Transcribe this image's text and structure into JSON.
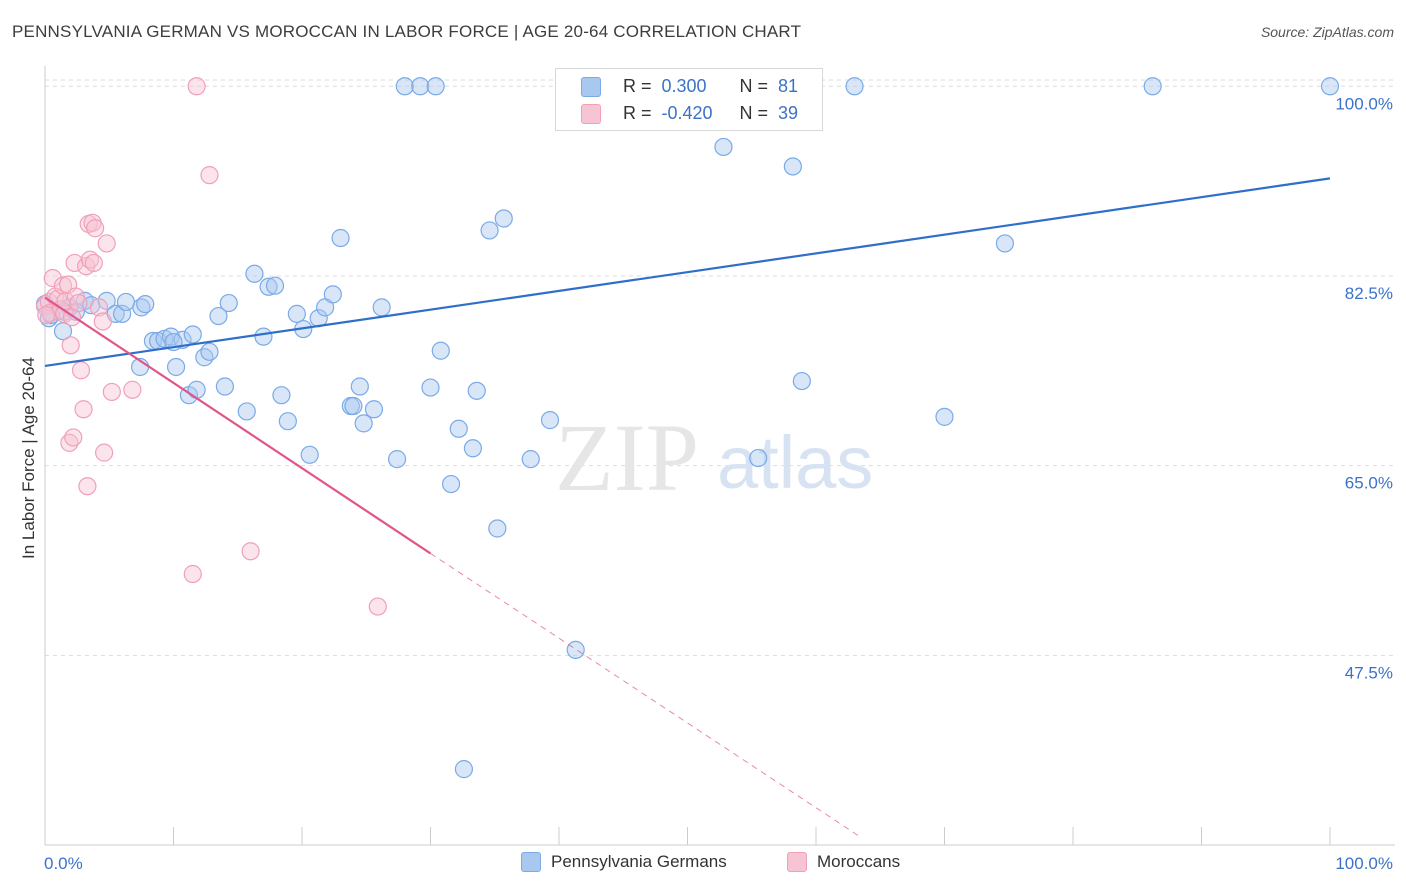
{
  "title": "PENNSYLVANIA GERMAN VS MOROCCAN IN LABOR FORCE | AGE 20-64 CORRELATION CHART",
  "source": "Source: ZipAtlas.com",
  "colors": {
    "blue": "#7aaae8",
    "blue_fill": "#a8c8f0",
    "blue_line": "#2f6fca",
    "pink": "#f0a0b8",
    "pink_fill": "#f6c4d2",
    "pink_line": "#e0558a",
    "axis_label": "#3b72c8",
    "grid": "#dddddd"
  },
  "legend": {
    "rows": [
      {
        "r_label": "R =",
        "r_value": "0.300",
        "n_label": "N =",
        "n_value": "81"
      },
      {
        "r_label": "R =",
        "r_value": "-0.420",
        "n_label": "N =",
        "n_value": "39"
      }
    ]
  },
  "chart_data": {
    "type": "scatter",
    "title": "PENNSYLVANIA GERMAN VS MOROCCAN IN LABOR FORCE | AGE 20-64 CORRELATION CHART",
    "xlabel": "",
    "ylabel": "In Labor Force | Age 20-64",
    "xlim": [
      0,
      100
    ],
    "ylim": [
      30,
      101.5
    ],
    "x_tick_labels": [
      "0.0%",
      "100.0%"
    ],
    "y_ticks": [
      47.5,
      65.0,
      82.5,
      100.0
    ],
    "y_tick_labels": [
      "47.5%",
      "65.0%",
      "82.5%",
      "100.0%"
    ],
    "grid": true,
    "legend_position": "top-center",
    "watermark": "ZIPatlas",
    "series": [
      {
        "name": "Pennsylvania Germans",
        "color": "#7aaae8",
        "r": 0.3,
        "n": 81,
        "trend": {
          "x": [
            0,
            100
          ],
          "y": [
            74.2,
            91.5
          ]
        },
        "points": [
          [
            0.3,
            78.6
          ],
          [
            1.4,
            77.4
          ],
          [
            1.5,
            79.2
          ],
          [
            1.9,
            79.6
          ],
          [
            3.1,
            80.2
          ],
          [
            3.6,
            79.8
          ],
          [
            4.8,
            80.2
          ],
          [
            5.5,
            79.0
          ],
          [
            6.0,
            79.0
          ],
          [
            7.4,
            74.1
          ],
          [
            7.5,
            79.6
          ],
          [
            7.8,
            79.9
          ],
          [
            8.4,
            76.5
          ],
          [
            8.8,
            76.5
          ],
          [
            9.3,
            76.7
          ],
          [
            9.8,
            76.9
          ],
          [
            10.2,
            74.1
          ],
          [
            10.7,
            76.6
          ],
          [
            11.2,
            71.5
          ],
          [
            11.5,
            77.1
          ],
          [
            11.8,
            72.0
          ],
          [
            12.4,
            75.0
          ],
          [
            12.8,
            75.5
          ],
          [
            13.5,
            78.8
          ],
          [
            14.0,
            72.3
          ],
          [
            14.3,
            80.0
          ],
          [
            15.7,
            70.0
          ],
          [
            16.3,
            82.7
          ],
          [
            17.0,
            76.9
          ],
          [
            17.4,
            81.5
          ],
          [
            17.9,
            81.6
          ],
          [
            18.4,
            71.5
          ],
          [
            18.9,
            69.1
          ],
          [
            19.6,
            79.0
          ],
          [
            20.1,
            77.6
          ],
          [
            20.6,
            66.0
          ],
          [
            21.3,
            78.6
          ],
          [
            21.8,
            79.6
          ],
          [
            22.4,
            80.8
          ],
          [
            23.0,
            86.0
          ],
          [
            23.8,
            70.5
          ],
          [
            24.0,
            70.5
          ],
          [
            24.5,
            72.3
          ],
          [
            24.8,
            68.9
          ],
          [
            25.6,
            70.2
          ],
          [
            26.2,
            79.6
          ],
          [
            27.4,
            65.6
          ],
          [
            28.0,
            100.0
          ],
          [
            29.2,
            100.0
          ],
          [
            30.4,
            100.0
          ],
          [
            30.0,
            72.2
          ],
          [
            30.8,
            75.6
          ],
          [
            31.6,
            63.3
          ],
          [
            32.2,
            68.4
          ],
          [
            32.6,
            37.0
          ],
          [
            33.3,
            66.6
          ],
          [
            33.6,
            71.9
          ],
          [
            34.6,
            86.7
          ],
          [
            35.2,
            59.2
          ],
          [
            35.7,
            87.8
          ],
          [
            37.8,
            65.6
          ],
          [
            39.3,
            69.2
          ],
          [
            41.3,
            48.0
          ],
          [
            42.2,
            100.0
          ],
          [
            43.0,
            100.0
          ],
          [
            46.1,
            100.0
          ],
          [
            52.8,
            94.4
          ],
          [
            55.5,
            65.7
          ],
          [
            58.2,
            92.6
          ],
          [
            58.2,
            100.0
          ],
          [
            58.9,
            72.8
          ],
          [
            63.0,
            100.0
          ],
          [
            70.0,
            69.5
          ],
          [
            74.7,
            85.5
          ],
          [
            86.2,
            100.0
          ],
          [
            100.0,
            100.0
          ],
          [
            0.0,
            79.9
          ],
          [
            0.5,
            78.9
          ],
          [
            2.4,
            79.2
          ],
          [
            6.3,
            80.1
          ],
          [
            10.0,
            76.4
          ]
        ]
      },
      {
        "name": "Moroccans",
        "color": "#f0a0b8",
        "r": -0.42,
        "n": 39,
        "trend": {
          "x": [
            0,
            30
          ],
          "y": [
            80.5,
            56.9
          ]
        },
        "trend_dashed": {
          "x": [
            30,
            63.5
          ],
          "y": [
            56.9,
            30.7
          ]
        },
        "points": [
          [
            0.0,
            79.7
          ],
          [
            0.3,
            80.1
          ],
          [
            0.4,
            79.1
          ],
          [
            0.6,
            82.3
          ],
          [
            0.8,
            80.6
          ],
          [
            1.0,
            80.4
          ],
          [
            1.2,
            79.4
          ],
          [
            1.4,
            81.6
          ],
          [
            1.5,
            79.0
          ],
          [
            1.6,
            80.2
          ],
          [
            1.8,
            81.7
          ],
          [
            1.9,
            67.1
          ],
          [
            2.0,
            76.1
          ],
          [
            2.1,
            78.7
          ],
          [
            2.2,
            67.6
          ],
          [
            2.3,
            83.7
          ],
          [
            2.4,
            80.6
          ],
          [
            2.6,
            80.0
          ],
          [
            2.8,
            73.8
          ],
          [
            3.0,
            70.2
          ],
          [
            3.2,
            83.4
          ],
          [
            3.3,
            63.1
          ],
          [
            3.4,
            87.3
          ],
          [
            3.5,
            84.0
          ],
          [
            3.7,
            87.4
          ],
          [
            3.8,
            83.7
          ],
          [
            3.9,
            86.9
          ],
          [
            4.2,
            79.6
          ],
          [
            4.5,
            78.3
          ],
          [
            4.6,
            66.2
          ],
          [
            4.8,
            85.5
          ],
          [
            5.2,
            71.8
          ],
          [
            6.8,
            72.0
          ],
          [
            11.5,
            55.0
          ],
          [
            11.8,
            100.0
          ],
          [
            12.8,
            91.8
          ],
          [
            16.0,
            57.1
          ],
          [
            25.9,
            52.0
          ],
          [
            0.1,
            78.9
          ]
        ]
      }
    ]
  }
}
